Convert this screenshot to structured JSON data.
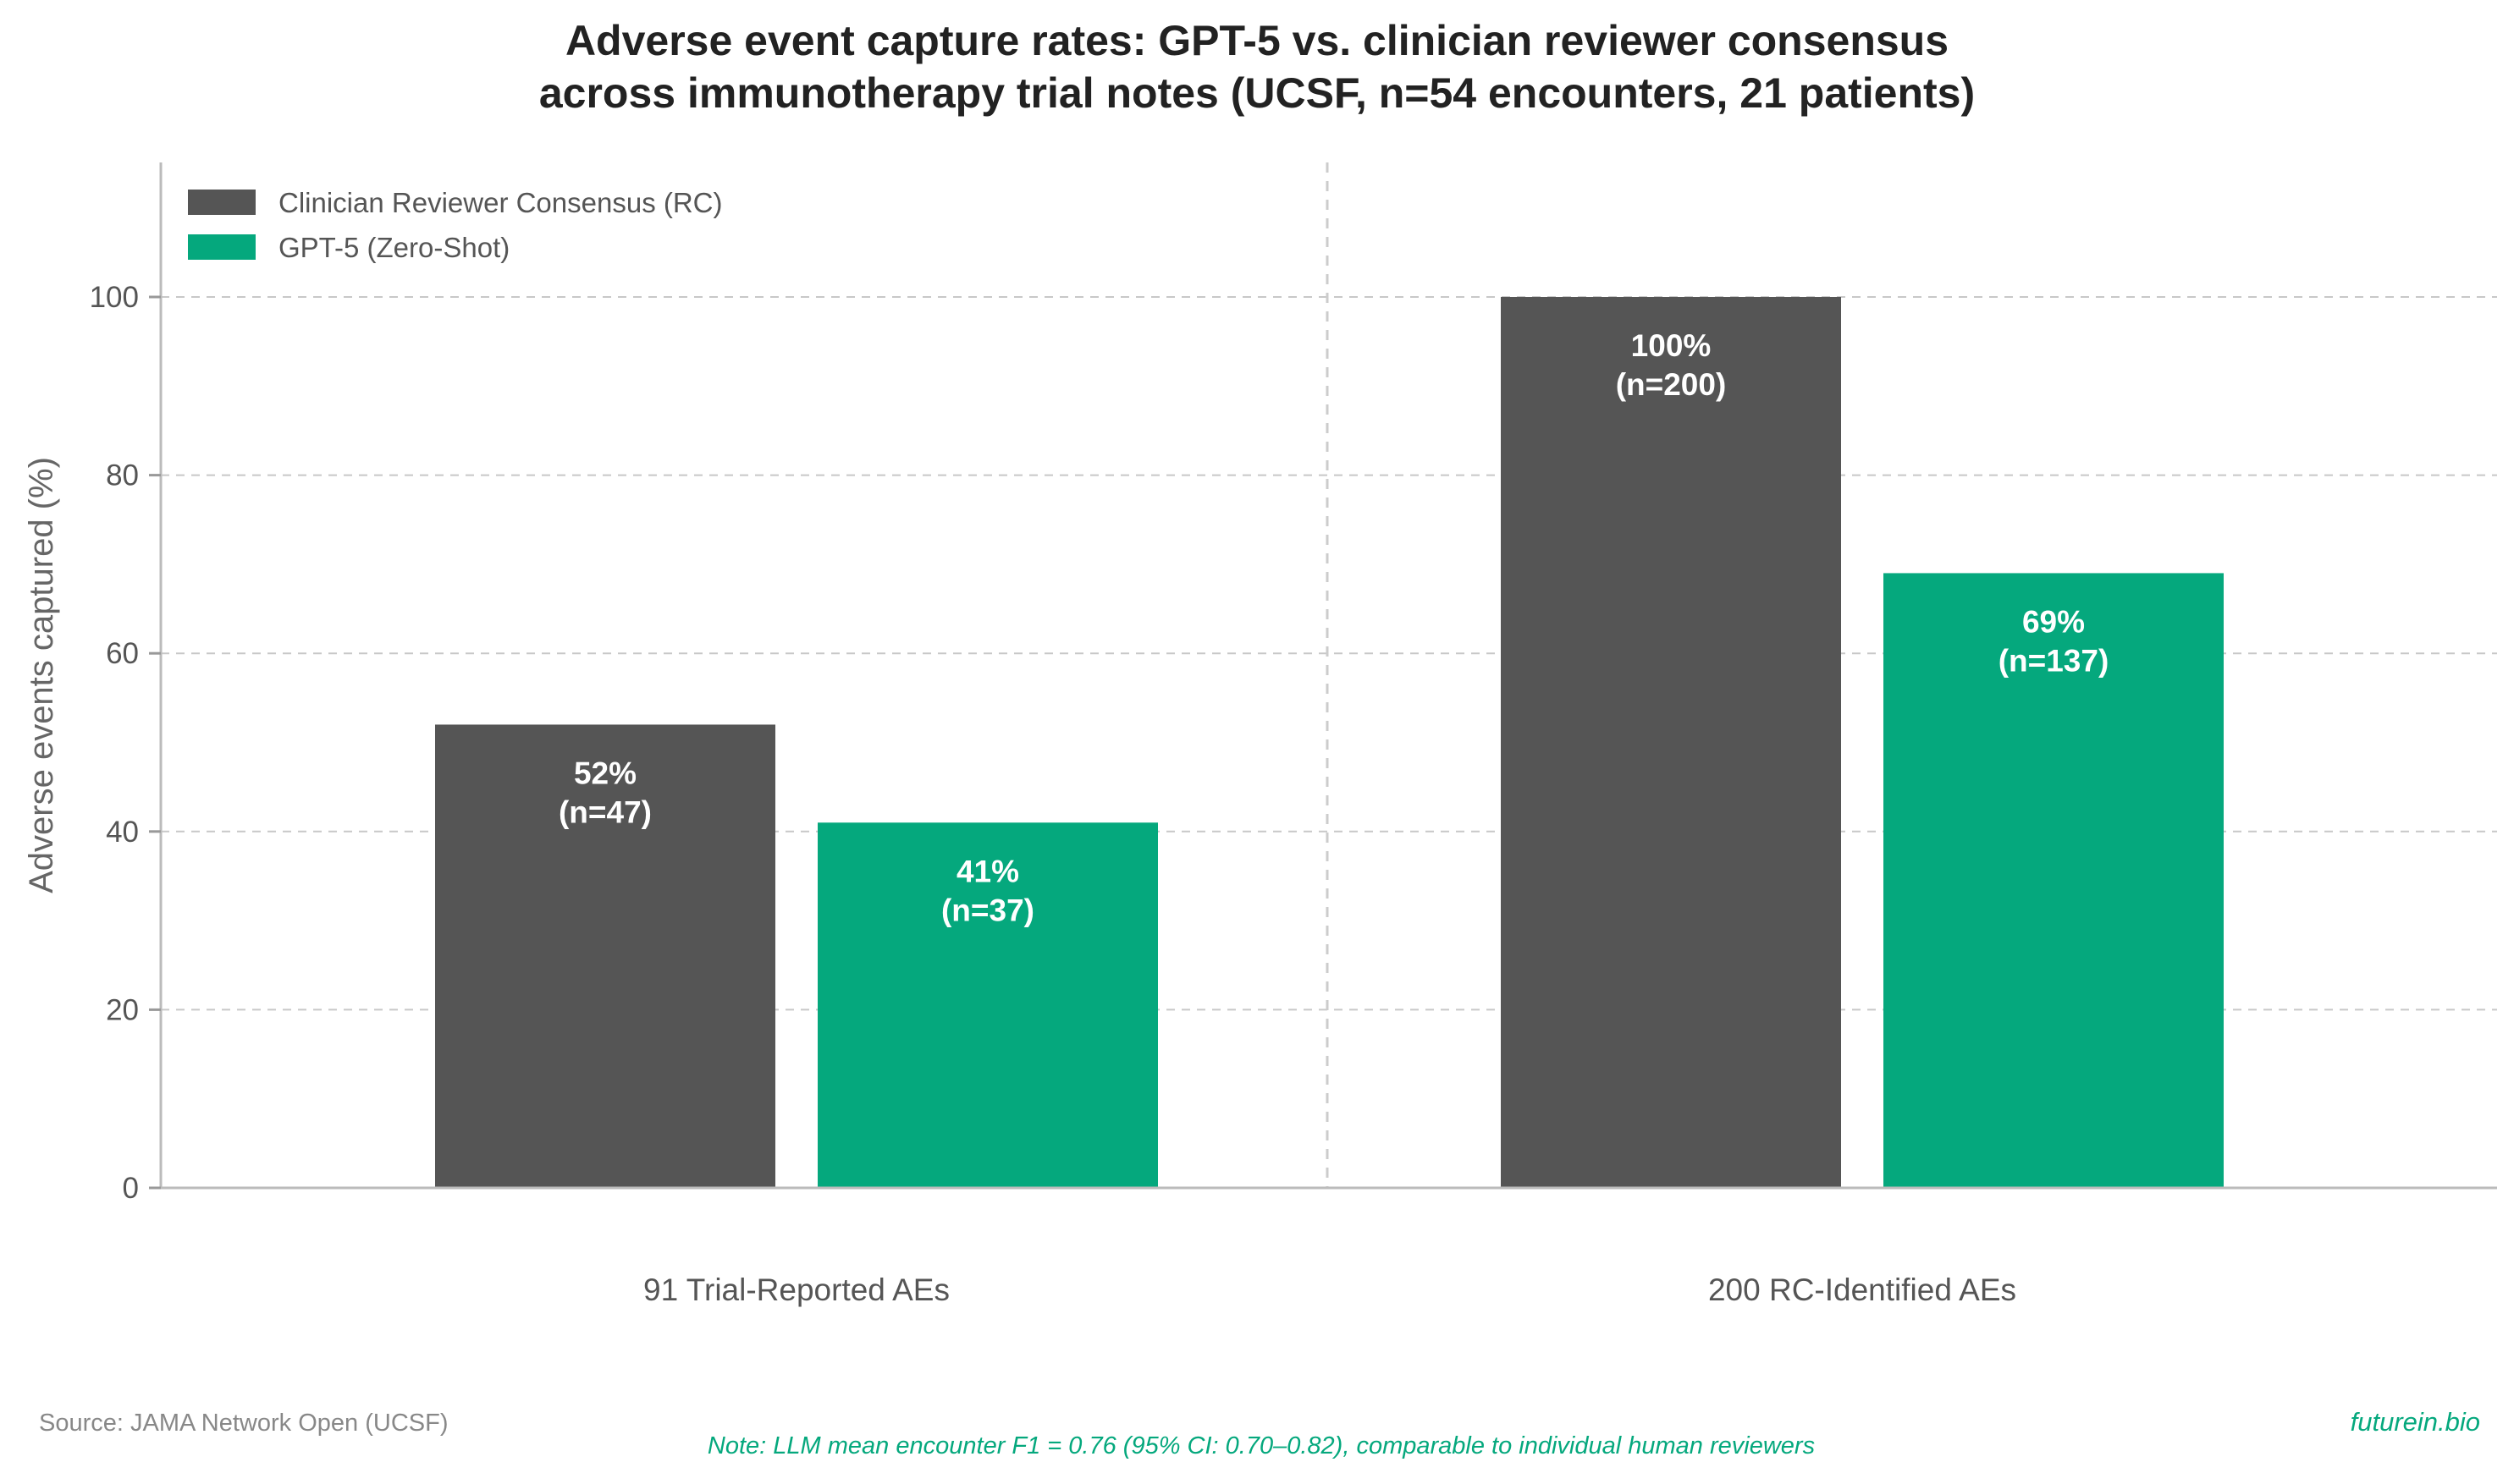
{
  "chart_data": {
    "type": "bar",
    "title_lines": [
      "Adverse event capture rates: GPT-5 vs. clinician reviewer consensus",
      "across immunotherapy trial notes (UCSF, n=54 encounters, 21 patients)"
    ],
    "xlabel": "",
    "ylabel": "Adverse events captured (%)",
    "ylim": [
      0,
      115
    ],
    "yticks": [
      0,
      20,
      40,
      60,
      80,
      100
    ],
    "grid": true,
    "legend_position": "top-left",
    "categories": [
      "91 Trial-Reported AEs",
      "200 RC-Identified AEs"
    ],
    "series": [
      {
        "name": "Clinician Reviewer Consensus (RC)",
        "color": "#555555",
        "values": [
          52,
          100
        ],
        "labels": [
          [
            "52%",
            "(n=47)"
          ],
          [
            "100%",
            "(n=200)"
          ]
        ]
      },
      {
        "name": "GPT-5 (Zero-Shot)",
        "color": "#05a87d",
        "values": [
          41,
          69
        ],
        "labels": [
          [
            "41%",
            "(n=37)"
          ],
          [
            "69%",
            "(n=137)"
          ]
        ]
      }
    ]
  },
  "footer": {
    "source": "Source: JAMA Network Open (UCSF)",
    "note": "Note: LLM mean encounter F1 = 0.76 (95% CI: 0.70–0.82), comparable to individual human reviewers",
    "brand": "futurein.bio",
    "accent_color": "#05a87d"
  }
}
